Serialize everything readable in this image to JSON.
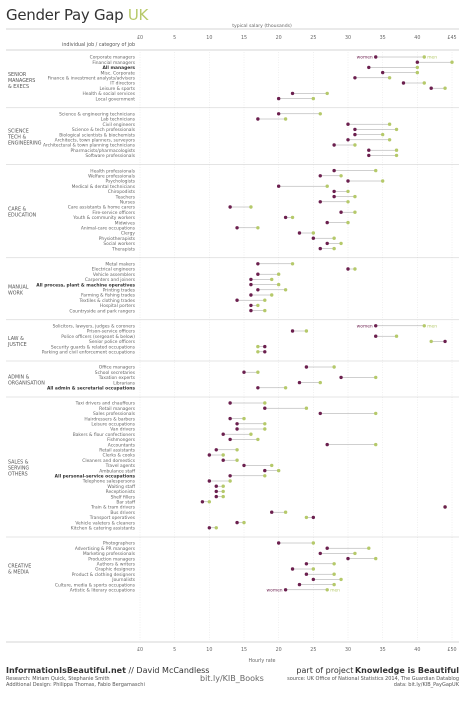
{
  "title": {
    "main": "Gender Pay Gap",
    "accent": "UK"
  },
  "header": {
    "top_axis_label": "typical salary (thousands)",
    "column_label": "individual job / category of job",
    "bottom_axis_label": "Hourly rate"
  },
  "axis": {
    "top_ticks": [
      "£0",
      "5",
      "10",
      "15",
      "20",
      "25",
      "30",
      "35",
      "40",
      "£45"
    ],
    "bottom_ticks": [
      "£0",
      "5",
      "10",
      "15",
      "20",
      "25",
      "30",
      "35",
      "40",
      "£50"
    ]
  },
  "colors": {
    "women": "#6b1f4e",
    "men": "#b5c96a",
    "axis": "#999999",
    "line": "#888888"
  },
  "legend": {
    "women": "women",
    "men": "men"
  },
  "footer": {
    "site": "InformationIsBeautiful.net",
    "sep": " // ",
    "author": "David McCandless",
    "research": "Research: Miriam Quick, Stephanie Smith",
    "design": "Additional Design: Philippa Thomas, Fabio Bergamaschi",
    "link": "bit.ly/KIB_Books",
    "project_prefix": "part of project",
    "project": "Knowledge is Beautiful",
    "sources": "source: UK Office of National Statistics 2014, The Guardian Datablog",
    "data": "data: bit.ly/KIB_PayGapUK"
  },
  "chart_data": {
    "type": "scatter",
    "xlabel": "typical salary (thousands)",
    "xlim": [
      0,
      45
    ],
    "series_names": [
      "women",
      "men"
    ],
    "groups": [
      {
        "label": [
          "SENIOR",
          "MANAGERS",
          "& EXECS"
        ],
        "rows": [
          {
            "job": "Corporate managers",
            "women": 34,
            "men": 41,
            "bold": false,
            "legend": true
          },
          {
            "job": "Financial managers",
            "women": 40,
            "men": 45,
            "bold": false
          },
          {
            "job": "All managers",
            "women": 33,
            "men": 40,
            "bold": true
          },
          {
            "job": "Misc. Corporate",
            "women": 35,
            "men": 40,
            "bold": false
          },
          {
            "job": "Finance & investment analysts/advisers",
            "women": 31,
            "men": 36,
            "bold": false
          },
          {
            "job": "IT directors",
            "women": 38,
            "men": 41,
            "bold": false
          },
          {
            "job": "Leisure & sports",
            "women": 42,
            "men": 44,
            "bold": false
          },
          {
            "job": "Health & social services",
            "women": 22,
            "men": 27,
            "bold": false
          },
          {
            "job": "Local government",
            "women": 20,
            "men": 25,
            "bold": false
          }
        ]
      },
      {
        "label": [
          "SCIENCE",
          "TECH &",
          "ENGINEERING"
        ],
        "rows": [
          {
            "job": "Science & engineering technicians",
            "women": 20,
            "men": 26,
            "bold": false
          },
          {
            "job": "Lab technicians",
            "women": 17,
            "men": 21,
            "bold": false
          },
          {
            "job": "Civil engineers",
            "women": 30,
            "men": 36,
            "bold": false
          },
          {
            "job": "Science & tech professionals",
            "women": 31,
            "men": 37,
            "bold": false
          },
          {
            "job": "Biological scientists & biochemists",
            "women": 31,
            "men": 35,
            "bold": false
          },
          {
            "job": "Architects, town planners, surveyors",
            "women": 30,
            "men": 36,
            "bold": false
          },
          {
            "job": "Architectural & town planning technicians",
            "women": 28,
            "men": 31,
            "bold": false
          },
          {
            "job": "Pharmacists/pharmacologists",
            "women": 33,
            "men": 37,
            "bold": false
          },
          {
            "job": "Software professionals",
            "women": 33,
            "men": 37,
            "bold": false
          }
        ]
      },
      {
        "label": [
          "CARE &",
          "EDUCATION"
        ],
        "rows": [
          {
            "job": "Health professionals",
            "women": 28,
            "men": 34,
            "bold": false
          },
          {
            "job": "Welfare professionals",
            "women": 26,
            "men": 29,
            "bold": false
          },
          {
            "job": "Psychologists",
            "women": 30,
            "men": 35,
            "bold": false
          },
          {
            "job": "Medical & dental technicians",
            "women": 20,
            "men": 27,
            "bold": false
          },
          {
            "job": "Chiropodists",
            "women": 28,
            "men": 30,
            "bold": false
          },
          {
            "job": "Teachers",
            "women": 28,
            "men": 31,
            "bold": false
          },
          {
            "job": "Nurses",
            "women": 26,
            "men": 30,
            "bold": false
          },
          {
            "job": "Care assistants & home carers",
            "women": 13,
            "men": 16,
            "bold": false
          },
          {
            "job": "Fire-service officers",
            "women": 29,
            "men": 31,
            "bold": false
          },
          {
            "job": "Youth & community workers",
            "women": 21,
            "men": 22,
            "bold": false
          },
          {
            "job": "Midwives",
            "women": 27,
            "men": 30,
            "bold": false
          },
          {
            "job": "Animal-care occupations",
            "women": 14,
            "men": 17,
            "bold": false
          },
          {
            "job": "Clergy",
            "women": 23,
            "men": 25,
            "bold": false
          },
          {
            "job": "Physiotherapists",
            "women": 25,
            "men": 28,
            "bold": false
          },
          {
            "job": "Social workers",
            "women": 27,
            "men": 29,
            "bold": false
          },
          {
            "job": "Therapists",
            "women": 26,
            "men": 28,
            "bold": false
          }
        ]
      },
      {
        "label": [
          "MANUAL",
          "WORK"
        ],
        "rows": [
          {
            "job": "Metal makers",
            "women": 17,
            "men": 22,
            "bold": false
          },
          {
            "job": "Electrical engineers",
            "women": 30,
            "men": 31,
            "bold": false
          },
          {
            "job": "Vehicle assemblers",
            "women": 17,
            "men": 20,
            "bold": false
          },
          {
            "job": "Carpenters and joiners",
            "women": 16,
            "men": 19,
            "bold": false
          },
          {
            "job": "All process, plant & machine operatives",
            "women": 16,
            "men": 20,
            "bold": true
          },
          {
            "job": "Printing trades",
            "women": 17,
            "men": 21,
            "bold": false
          },
          {
            "job": "Farming & fishing trades",
            "women": 16,
            "men": 19,
            "bold": false
          },
          {
            "job": "Textiles & clothing trades",
            "women": 14,
            "men": 18,
            "bold": false
          },
          {
            "job": "Hospital porters",
            "women": 16,
            "men": 17,
            "bold": false
          },
          {
            "job": "Countryside and park rangers",
            "women": 16,
            "men": 18,
            "bold": false
          }
        ]
      },
      {
        "label": [
          "LAW &",
          "JUSTICE"
        ],
        "rows": [
          {
            "job": "Solicitors, lawyers, judges & coroners",
            "women": 34,
            "men": 41,
            "bold": false,
            "legend": true
          },
          {
            "job": "Prison-service officers",
            "women": 22,
            "men": 24,
            "bold": false
          },
          {
            "job": "Police officers (sergeant & below)",
            "women": 34,
            "men": 37,
            "bold": false
          },
          {
            "job": "Senior police officers",
            "women": 44,
            "men": 42,
            "bold": false
          },
          {
            "job": "Security guards & related occupations",
            "women": 18,
            "men": 17,
            "bold": false
          },
          {
            "job": "Parking and civil enforcement occupations",
            "women": 18,
            "men": 17,
            "bold": false
          }
        ]
      },
      {
        "label": [
          "ADMIN &",
          "ORGANISATION"
        ],
        "rows": [
          {
            "job": "Office managers",
            "women": 24,
            "men": 28,
            "bold": false
          },
          {
            "job": "School secretaries",
            "women": 15,
            "men": 17,
            "bold": false
          },
          {
            "job": "Taxation experts",
            "women": 29,
            "men": 34,
            "bold": false
          },
          {
            "job": "Librarians",
            "women": 23,
            "men": 26,
            "bold": false
          },
          {
            "job": "All admin & secretarial occupations",
            "women": 17,
            "men": 21,
            "bold": true
          }
        ]
      },
      {
        "label": [
          "SALES &",
          "SERVING",
          "OTHERS"
        ],
        "rows": [
          {
            "job": "Taxi drivers and chauffeurs",
            "women": 13,
            "men": 18,
            "bold": false
          },
          {
            "job": "Retail managers",
            "women": 18,
            "men": 24,
            "bold": false
          },
          {
            "job": "Sales professionals",
            "women": 26,
            "men": 34,
            "bold": false
          },
          {
            "job": "Hairdressers & barbers",
            "women": 13,
            "men": 15,
            "bold": false
          },
          {
            "job": "Leisure occupations",
            "women": 14,
            "men": 18,
            "bold": false
          },
          {
            "job": "Van drivers",
            "women": 14,
            "men": 18,
            "bold": false
          },
          {
            "job": "Bakers & flour confectioners",
            "women": 12,
            "men": 16,
            "bold": false
          },
          {
            "job": "Fishmongers",
            "women": 13,
            "men": 17,
            "bold": false
          },
          {
            "job": "Accountants",
            "women": 27,
            "men": 34,
            "bold": false
          },
          {
            "job": "Retail assistants",
            "women": 11,
            "men": 14,
            "bold": false
          },
          {
            "job": "Clerks & cooks",
            "women": 10,
            "men": 12,
            "bold": false
          },
          {
            "job": "Cleaners and domestics",
            "women": 12,
            "men": 14,
            "bold": false
          },
          {
            "job": "Travel agents",
            "women": 15,
            "men": 19,
            "bold": false
          },
          {
            "job": "Ambulance staff",
            "women": 18,
            "men": 20,
            "bold": false
          },
          {
            "job": "All personal-service occupations",
            "women": 13,
            "men": 18,
            "bold": true
          },
          {
            "job": "Telephone salespersons",
            "women": 10,
            "men": 13,
            "bold": false
          },
          {
            "job": "Waiting staff",
            "women": 11,
            "men": 12,
            "bold": false
          },
          {
            "job": "Receptionists",
            "women": 11,
            "men": 12,
            "bold": false
          },
          {
            "job": "Shelf fillers",
            "women": 11,
            "men": 12,
            "bold": false
          },
          {
            "job": "Bar staff",
            "women": 9,
            "men": 10,
            "bold": false
          },
          {
            "job": "Train & tram drivers",
            "women": 44,
            "men": 44,
            "bold": false
          },
          {
            "job": "Bus drivers",
            "women": 19,
            "men": 21,
            "bold": false
          },
          {
            "job": "Transport operatives",
            "women": 25,
            "men": 24,
            "bold": false
          },
          {
            "job": "Vehicle valeters & cleaners",
            "women": 14,
            "men": 15,
            "bold": false
          },
          {
            "job": "Kitchen & catering assistants",
            "women": 10,
            "men": 11,
            "bold": false
          }
        ]
      },
      {
        "label": [
          "CREATIVE",
          "& MEDIA"
        ],
        "rows": [
          {
            "job": "Photographers",
            "women": 20,
            "men": 25,
            "bold": false
          },
          {
            "job": "Advertising & PR managers",
            "women": 27,
            "men": 33,
            "bold": false
          },
          {
            "job": "Marketing professionals",
            "women": 26,
            "men": 31,
            "bold": false
          },
          {
            "job": "Production managers",
            "women": 30,
            "men": 34,
            "bold": false
          },
          {
            "job": "Authors & writers",
            "women": 24,
            "men": 28,
            "bold": false
          },
          {
            "job": "Graphic designers",
            "women": 22,
            "men": 25,
            "bold": false
          },
          {
            "job": "Product & clothing designers",
            "women": 24,
            "men": 28,
            "bold": false
          },
          {
            "job": "Journalists",
            "women": 25,
            "men": 29,
            "bold": false
          },
          {
            "job": "Culture, media & sports occupations",
            "women": 23,
            "men": 28,
            "bold": false
          },
          {
            "job": "Artistic & literary occupations",
            "women": 21,
            "men": 27,
            "bold": false,
            "legend": true
          }
        ]
      }
    ]
  }
}
